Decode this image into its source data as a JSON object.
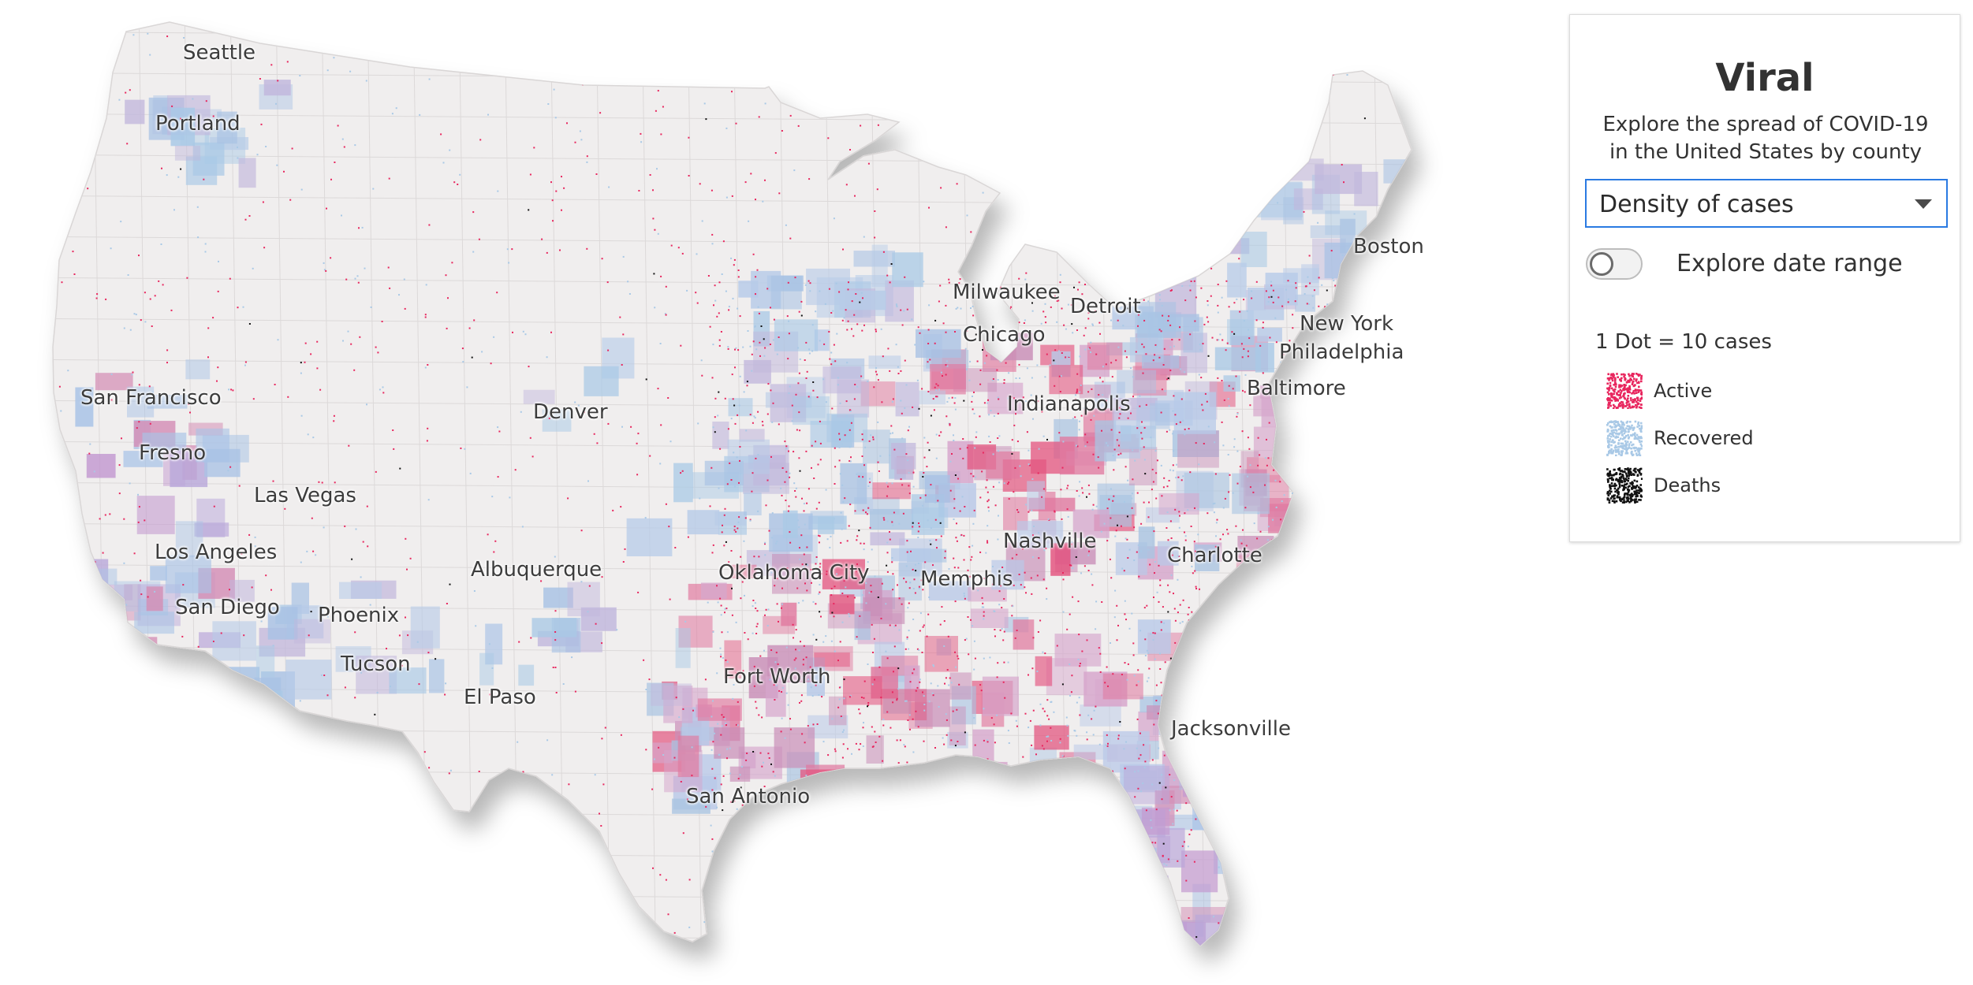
{
  "panel": {
    "title": "Viral",
    "description": "Explore the spread of COVID-19 in the United States by county",
    "select": {
      "value": "Density of cases"
    },
    "toggle": {
      "label": "Explore date range",
      "on": false
    },
    "legend": {
      "scale": "1 Dot = 10 cases",
      "items": [
        {
          "label": "Active",
          "color": "#e8265e"
        },
        {
          "label": "Recovered",
          "color": "#a9c9e6"
        },
        {
          "label": "Deaths",
          "color": "#111111"
        }
      ]
    }
  },
  "map": {
    "land_color": "#f0eeee",
    "cities": [
      "Seattle",
      "Portland",
      "San Francisco",
      "Fresno",
      "Las Vegas",
      "Los Angeles",
      "San Diego",
      "Phoenix",
      "Tucson",
      "El Paso",
      "Albuquerque",
      "Denver",
      "Oklahoma City",
      "Fort Worth",
      "San Antonio",
      "Memphis",
      "Nashville",
      "Chicago",
      "Milwaukee",
      "Detroit",
      "Indianapolis",
      "Charlotte",
      "Jacksonville",
      "Baltimore",
      "Philadelphia",
      "New York",
      "Boston"
    ]
  }
}
